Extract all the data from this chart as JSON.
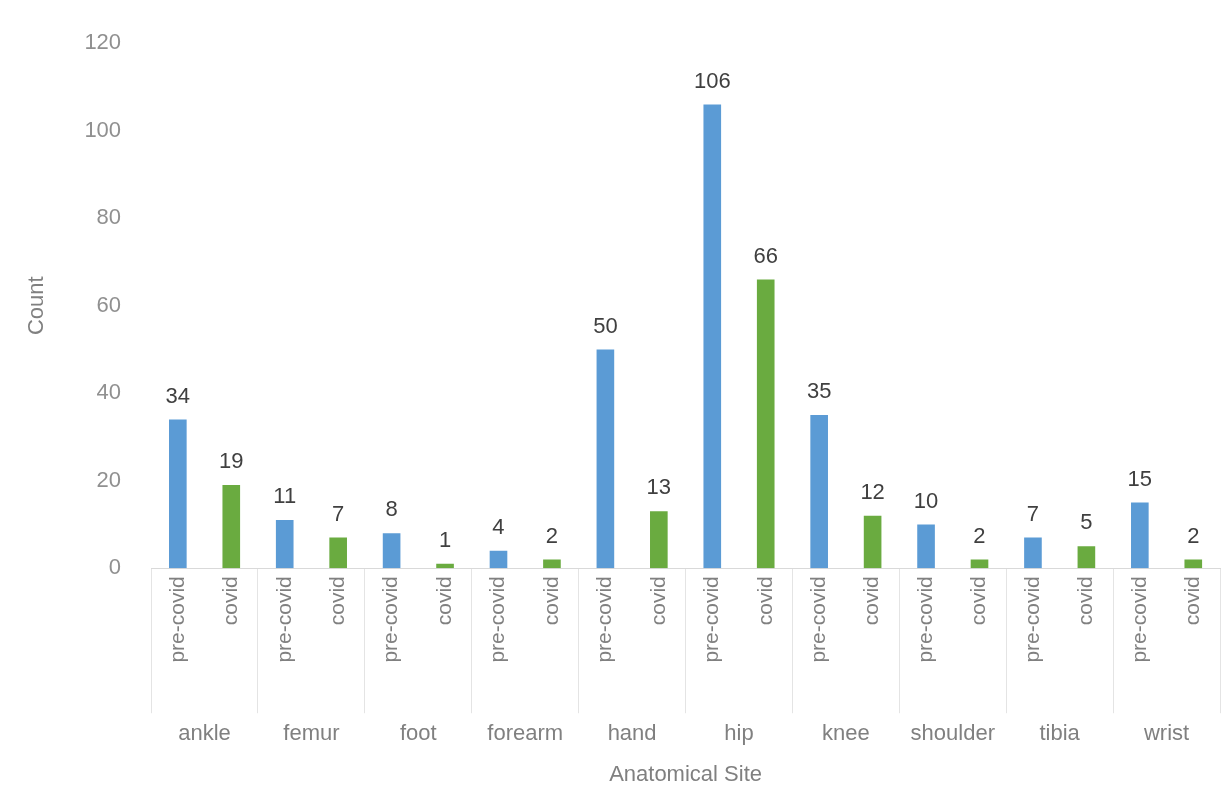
{
  "chart_data": {
    "type": "bar",
    "categories": [
      "ankle",
      "femur",
      "foot",
      "forearm",
      "hand",
      "hip",
      "knee",
      "shoulder",
      "tibia",
      "wrist"
    ],
    "series": [
      {
        "name": "pre-covid",
        "color": "#5b9bd5",
        "values": [
          34,
          11,
          8,
          4,
          50,
          106,
          35,
          10,
          7,
          15
        ]
      },
      {
        "name": "covid",
        "color": "#6aab40",
        "values": [
          19,
          7,
          1,
          2,
          13,
          66,
          12,
          2,
          5,
          2
        ]
      }
    ],
    "xlabel": "Anatomical Site",
    "ylabel": "Count",
    "ylim": [
      0,
      120
    ],
    "yticks": [
      0,
      20,
      40,
      60,
      80,
      100,
      120
    ],
    "grid": false,
    "legend": false,
    "data_labels": true
  }
}
